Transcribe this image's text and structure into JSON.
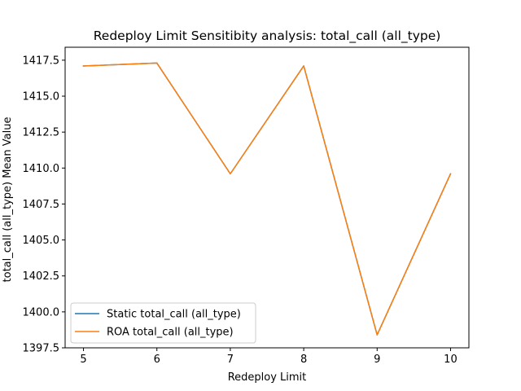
{
  "chart_data": {
    "type": "line",
    "title": "Redeploy Limit Sensitibity analysis: total_call (all_type)",
    "xlabel": "Redeploy Limit",
    "ylabel": "total_call (all_type) Mean Value",
    "x": [
      5,
      6,
      7,
      8,
      9,
      10
    ],
    "xlim": [
      4.75,
      10.25
    ],
    "ylim": [
      1397.5,
      1418.4
    ],
    "xticks": [
      5,
      6,
      7,
      8,
      9,
      10
    ],
    "xtick_labels": [
      "5",
      "6",
      "7",
      "8",
      "9",
      "10"
    ],
    "yticks": [
      1397.5,
      1400.0,
      1402.5,
      1405.0,
      1407.5,
      1410.0,
      1412.5,
      1415.0,
      1417.5
    ],
    "ytick_labels": [
      "1397.5",
      "1400.0",
      "1402.5",
      "1405.0",
      "1407.5",
      "1410.0",
      "1412.5",
      "1415.0",
      "1417.5"
    ],
    "series": [
      {
        "name": "Static total_call (all_type)",
        "color": "#1f77b4",
        "values": [
          1417.1,
          1417.3,
          1409.6,
          1417.1,
          1398.4,
          1409.6
        ]
      },
      {
        "name": "ROA total_call (all_type)",
        "color": "#ff7f0e",
        "values": [
          1417.1,
          1417.3,
          1409.6,
          1417.1,
          1398.4,
          1409.6
        ]
      }
    ],
    "legend_position": "lower-left",
    "grid": false
  }
}
